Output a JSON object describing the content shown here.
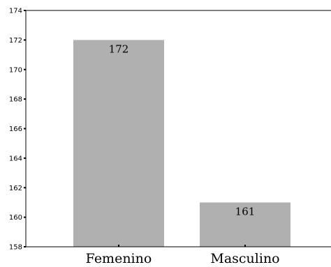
{
  "chart_data": {
    "type": "bar",
    "categories": [
      "Femenino",
      "Masculino"
    ],
    "values": [
      172,
      161
    ],
    "data_labels": [
      "172",
      "161"
    ],
    "title": "",
    "xlabel": "",
    "ylabel": "",
    "ylim": [
      158,
      174
    ],
    "yticks": [
      158,
      160,
      162,
      164,
      166,
      168,
      170,
      172,
      174
    ],
    "grid": false,
    "legend": "none",
    "colors": {
      "bar": "#b0b0b0",
      "axis": "#000000"
    }
  }
}
